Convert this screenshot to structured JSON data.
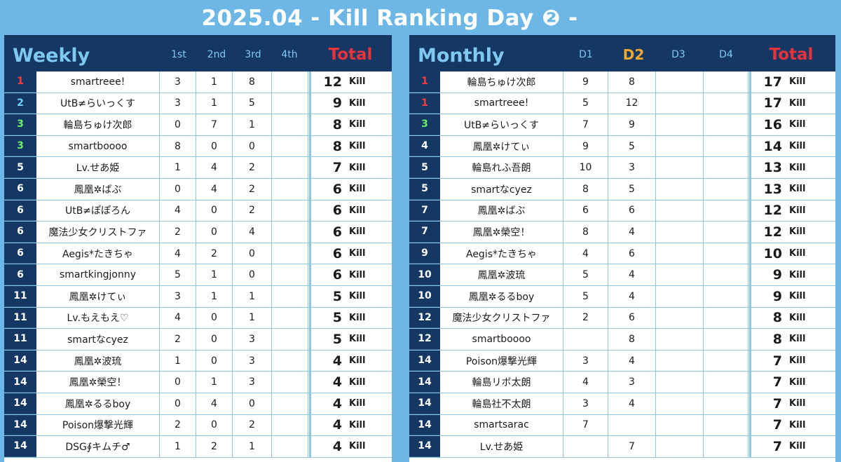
{
  "title": "2025.04 - Kill Ranking Day ❷ -",
  "weekly": {
    "title": "Weekly",
    "columns": [
      "1st",
      "2nd",
      "3rd",
      "4th"
    ],
    "total_label": "Total",
    "unit": "Kill",
    "rows": [
      {
        "rank": "1",
        "name": "smartreee!",
        "d": [
          "3",
          "1",
          "8",
          ""
        ],
        "total": "12"
      },
      {
        "rank": "2",
        "name": "UtB≠らいっくす",
        "d": [
          "3",
          "1",
          "5",
          ""
        ],
        "total": "9"
      },
      {
        "rank": "3",
        "name": "輪島ちゅけ次郎",
        "d": [
          "0",
          "7",
          "1",
          ""
        ],
        "total": "8"
      },
      {
        "rank": "3",
        "name": "smartboooo",
        "d": [
          "8",
          "0",
          "0",
          ""
        ],
        "total": "8"
      },
      {
        "rank": "5",
        "name": "Lv.せあ姫",
        "d": [
          "1",
          "4",
          "2",
          ""
        ],
        "total": "7"
      },
      {
        "rank": "6",
        "name": "鳳凰✲ばぶ",
        "d": [
          "0",
          "4",
          "2",
          ""
        ],
        "total": "6"
      },
      {
        "rank": "6",
        "name": "UtB≠ぽぽろん",
        "d": [
          "4",
          "0",
          "2",
          ""
        ],
        "total": "6"
      },
      {
        "rank": "6",
        "name": "魔法少女クリストファ",
        "d": [
          "2",
          "0",
          "4",
          ""
        ],
        "total": "6"
      },
      {
        "rank": "6",
        "name": "Aegis*たきちゃ",
        "d": [
          "4",
          "2",
          "0",
          ""
        ],
        "total": "6"
      },
      {
        "rank": "6",
        "name": "smartkingjonny",
        "d": [
          "5",
          "1",
          "0",
          ""
        ],
        "total": "6"
      },
      {
        "rank": "11",
        "name": "鳳凰✲けてぃ",
        "d": [
          "3",
          "1",
          "1",
          ""
        ],
        "total": "5"
      },
      {
        "rank": "11",
        "name": "Lv.もえもえ♡",
        "d": [
          "4",
          "0",
          "1",
          ""
        ],
        "total": "5"
      },
      {
        "rank": "11",
        "name": "smartなcyez",
        "d": [
          "2",
          "0",
          "3",
          ""
        ],
        "total": "5"
      },
      {
        "rank": "14",
        "name": "鳳凰✲波琉",
        "d": [
          "1",
          "0",
          "3",
          ""
        ],
        "total": "4"
      },
      {
        "rank": "14",
        "name": "鳳凰✲榮空！",
        "d": [
          "0",
          "1",
          "3",
          ""
        ],
        "total": "4"
      },
      {
        "rank": "14",
        "name": "鳳凰✲るるboy",
        "d": [
          "0",
          "4",
          "0",
          ""
        ],
        "total": "4"
      },
      {
        "rank": "14",
        "name": "Poison爆撃光輝",
        "d": [
          "2",
          "0",
          "2",
          ""
        ],
        "total": "4"
      },
      {
        "rank": "14",
        "name": "DSG∮キムチ♂",
        "d": [
          "1",
          "2",
          "1",
          ""
        ],
        "total": "4"
      }
    ]
  },
  "monthly": {
    "title": "Monthly",
    "columns": [
      "D1",
      "D2",
      "D3",
      "D4"
    ],
    "total_label": "Total",
    "unit": "Kill",
    "rows": [
      {
        "rank": "1",
        "name": "輪島ちゅけ次郎",
        "d": [
          "9",
          "8",
          "",
          ""
        ],
        "total": "17"
      },
      {
        "rank": "1",
        "name": "smartreee!",
        "d": [
          "5",
          "12",
          "",
          ""
        ],
        "total": "17"
      },
      {
        "rank": "3",
        "name": "UtB≠らいっくす",
        "d": [
          "7",
          "9",
          "",
          ""
        ],
        "total": "16"
      },
      {
        "rank": "4",
        "name": "鳳凰✲けてぃ",
        "d": [
          "9",
          "5",
          "",
          ""
        ],
        "total": "14"
      },
      {
        "rank": "5",
        "name": "輪島れふ吾朗",
        "d": [
          "10",
          "3",
          "",
          ""
        ],
        "total": "13"
      },
      {
        "rank": "5",
        "name": "smartなcyez",
        "d": [
          "8",
          "5",
          "",
          ""
        ],
        "total": "13"
      },
      {
        "rank": "7",
        "name": "鳳凰✲ばぶ",
        "d": [
          "6",
          "6",
          "",
          ""
        ],
        "total": "12"
      },
      {
        "rank": "7",
        "name": "鳳凰✲榮空！",
        "d": [
          "8",
          "4",
          "",
          ""
        ],
        "total": "12"
      },
      {
        "rank": "9",
        "name": "Aegis*たきちゃ",
        "d": [
          "4",
          "6",
          "",
          ""
        ],
        "total": "10"
      },
      {
        "rank": "10",
        "name": "鳳凰✲波琉",
        "d": [
          "5",
          "4",
          "",
          ""
        ],
        "total": "9"
      },
      {
        "rank": "10",
        "name": "鳳凰✲るるboy",
        "d": [
          "5",
          "4",
          "",
          ""
        ],
        "total": "9"
      },
      {
        "rank": "12",
        "name": "魔法少女クリストファ",
        "d": [
          "2",
          "6",
          "",
          ""
        ],
        "total": "8"
      },
      {
        "rank": "12",
        "name": "smartboooo",
        "d": [
          "",
          "8",
          "",
          ""
        ],
        "total": "8"
      },
      {
        "rank": "14",
        "name": "Poison爆撃光輝",
        "d": [
          "3",
          "4",
          "",
          ""
        ],
        "total": "7"
      },
      {
        "rank": "14",
        "name": "輪島リボ太朗",
        "d": [
          "4",
          "3",
          "",
          ""
        ],
        "total": "7"
      },
      {
        "rank": "14",
        "name": "輪島社不太朗",
        "d": [
          "3",
          "4",
          "",
          ""
        ],
        "total": "7"
      },
      {
        "rank": "14",
        "name": "smartsarac",
        "d": [
          "7",
          "",
          "",
          ""
        ],
        "total": "7"
      },
      {
        "rank": "14",
        "name": "Lv.せあ姫",
        "d": [
          "",
          "7",
          "",
          ""
        ],
        "total": "7"
      }
    ]
  },
  "colors": {
    "background": "#6cb7e6",
    "header": "#143863",
    "header_text": "#7fc8f2",
    "total": "#e8323c",
    "current_day": "#f0a830",
    "rank1": "#ff3b3b",
    "rank2": "#6fd1ff",
    "rank3": "#6af06a"
  }
}
